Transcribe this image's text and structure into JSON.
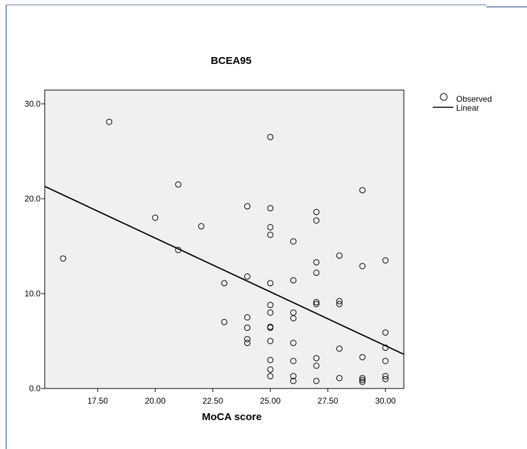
{
  "chart_data": {
    "type": "scatter",
    "title": "BCEA95",
    "xlabel": "MoCA score",
    "ylabel": "",
    "xlim": [
      15.2,
      30.8
    ],
    "ylim": [
      0,
      30
    ],
    "x_ticks": [
      17.5,
      20.0,
      22.5,
      25.0,
      27.5,
      30.0
    ],
    "x_tick_labels": [
      "17.50",
      "20.00",
      "22.50",
      "25.00",
      "27.50",
      "30.00"
    ],
    "y_ticks": [
      0,
      10,
      20,
      30
    ],
    "y_tick_labels": [
      "0.0",
      "10.0",
      "20.0",
      "30.0"
    ],
    "grid": false,
    "legend_position": "right",
    "legend": [
      {
        "label": "Observed",
        "marker": "circle"
      },
      {
        "label": "Linear",
        "marker": "line"
      }
    ],
    "series": [
      {
        "name": "Observed",
        "points": [
          [
            16,
            13.7
          ],
          [
            18,
            28.1
          ],
          [
            20,
            18.0
          ],
          [
            21,
            21.5
          ],
          [
            21,
            14.6
          ],
          [
            22,
            17.1
          ],
          [
            23,
            11.1
          ],
          [
            23,
            7.0
          ],
          [
            24,
            19.2
          ],
          [
            24,
            11.8
          ],
          [
            24,
            7.5
          ],
          [
            24,
            6.4
          ],
          [
            24,
            5.2
          ],
          [
            24,
            4.8
          ],
          [
            25,
            26.5
          ],
          [
            25,
            19.0
          ],
          [
            25,
            17.0
          ],
          [
            25,
            16.2
          ],
          [
            25,
            11.1
          ],
          [
            25,
            8.8
          ],
          [
            25,
            8.0
          ],
          [
            25,
            6.5
          ],
          [
            25,
            6.4
          ],
          [
            25,
            5.0
          ],
          [
            25,
            3.0
          ],
          [
            25,
            2.0
          ],
          [
            25,
            1.3
          ],
          [
            26,
            15.5
          ],
          [
            26,
            11.4
          ],
          [
            26,
            8.0
          ],
          [
            26,
            7.4
          ],
          [
            26,
            4.8
          ],
          [
            26,
            2.9
          ],
          [
            26,
            1.3
          ],
          [
            26,
            0.8
          ],
          [
            27,
            18.6
          ],
          [
            27,
            17.7
          ],
          [
            27,
            13.3
          ],
          [
            27,
            12.2
          ],
          [
            27,
            9.1
          ],
          [
            27,
            8.9
          ],
          [
            27,
            3.2
          ],
          [
            27,
            2.4
          ],
          [
            27,
            0.8
          ],
          [
            28,
            14.0
          ],
          [
            28,
            9.2
          ],
          [
            28,
            8.9
          ],
          [
            28,
            4.2
          ],
          [
            28,
            1.1
          ],
          [
            29,
            20.9
          ],
          [
            29,
            12.9
          ],
          [
            29,
            3.3
          ],
          [
            29,
            1.1
          ],
          [
            29,
            0.9
          ],
          [
            29,
            0.7
          ],
          [
            30,
            13.5
          ],
          [
            30,
            5.9
          ],
          [
            30,
            4.3
          ],
          [
            30,
            2.9
          ],
          [
            30,
            1.3
          ],
          [
            30,
            1.0
          ]
        ]
      },
      {
        "name": "Linear",
        "line": [
          [
            15.2,
            21.3
          ],
          [
            30.8,
            3.6
          ]
        ]
      }
    ]
  }
}
